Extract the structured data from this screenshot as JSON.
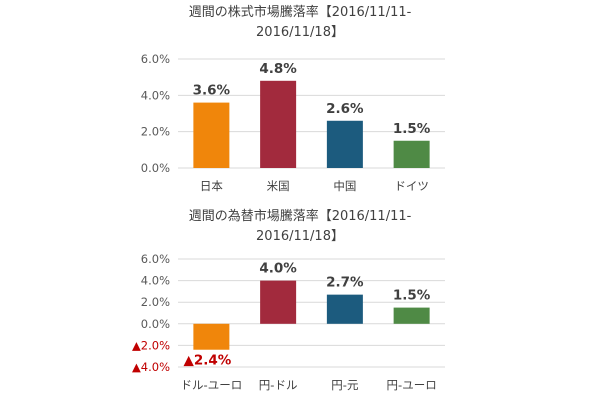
{
  "chart_data": [
    {
      "type": "bar",
      "title": "週間の株式市場騰落率【2016/11/11-2016/11/18】",
      "title_lines": [
        "週間の株式市場騰落率【2016/11/11-",
        "2016/11/18】"
      ],
      "categories": [
        "日本",
        "米国",
        "中国",
        "ドイツ"
      ],
      "values": [
        3.6,
        4.8,
        2.6,
        1.5
      ],
      "data_labels": [
        "3.6%",
        "4.8%",
        "2.6%",
        "1.5%"
      ],
      "colors": [
        "#f0860b",
        "#a22a3d",
        "#1c5b7e",
        "#4f8a45"
      ],
      "y_ticks": [
        {
          "value": 0,
          "label": "0.0%"
        },
        {
          "value": 2,
          "label": "2.0%"
        },
        {
          "value": 4,
          "label": "4.0%"
        },
        {
          "value": 6,
          "label": "6.0%"
        }
      ],
      "ylim": [
        0,
        6
      ],
      "grid": true,
      "xlabel": "",
      "ylabel": ""
    },
    {
      "type": "bar",
      "title": "週間の為替市場騰落率【2016/11/11-2016/11/18】",
      "title_lines": [
        "週間の為替市場騰落率【2016/11/11-",
        "2016/11/18】"
      ],
      "categories": [
        "ドル-ユーロ",
        "円-ドル",
        "円-元",
        "円-ユーロ"
      ],
      "values": [
        -2.4,
        4.0,
        2.7,
        1.5
      ],
      "data_labels": [
        "▲2.4%",
        "4.0%",
        "2.7%",
        "1.5%"
      ],
      "colors": [
        "#f0860b",
        "#a22a3d",
        "#1c5b7e",
        "#4f8a45"
      ],
      "y_ticks": [
        {
          "value": -4,
          "label": "▲4.0%"
        },
        {
          "value": -2,
          "label": "▲2.0%"
        },
        {
          "value": 0,
          "label": "0.0%"
        },
        {
          "value": 2,
          "label": "2.0%"
        },
        {
          "value": 4,
          "label": "4.0%"
        },
        {
          "value": 6,
          "label": "6.0%"
        }
      ],
      "ylim": [
        -4,
        6
      ],
      "grid": true,
      "xlabel": "",
      "ylabel": ""
    }
  ],
  "colors": {
    "grid": "#d9d9d9",
    "text": "#404040",
    "negative": "#c00000"
  }
}
